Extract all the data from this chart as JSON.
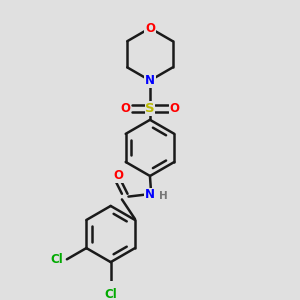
{
  "background_color": "#e0e0e0",
  "bond_color": "#1a1a1a",
  "bond_width": 1.8,
  "atom_colors": {
    "O": "#ff0000",
    "N": "#0000ff",
    "S": "#bbbb00",
    "Cl": "#00aa00",
    "C": "#1a1a1a",
    "H": "#777777"
  },
  "font_size": 8.5,
  "fig_width": 3.0,
  "fig_height": 3.0,
  "dpi": 100
}
